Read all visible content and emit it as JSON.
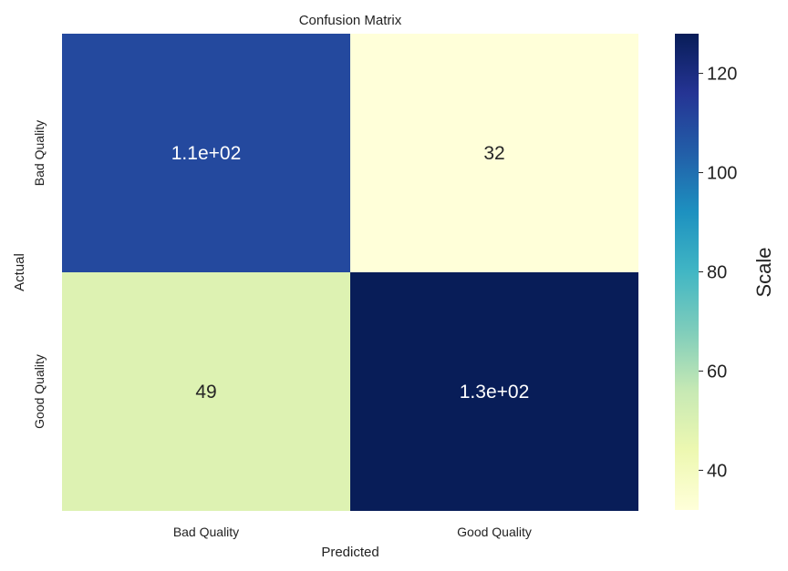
{
  "chart_data": {
    "type": "heatmap",
    "title": "Confusion Matrix",
    "xlabel": "Predicted",
    "ylabel": "Actual",
    "x_categories": [
      "Bad Quality",
      "Good Quality"
    ],
    "y_categories": [
      "Bad Quality",
      "Good Quality"
    ],
    "values": [
      [
        110,
        32
      ],
      [
        49,
        128
      ]
    ],
    "annotations": [
      [
        "1.1e+02",
        "32"
      ],
      [
        "49",
        "1.3e+02"
      ]
    ],
    "colorbar": {
      "label": "Scale",
      "min": 32,
      "max": 128,
      "ticks": [
        40,
        60,
        80,
        100,
        120
      ],
      "colormap": "YlGnBu",
      "colormap_stops": [
        "#ffffd9",
        "#edf8b1",
        "#c7e9b4",
        "#7fcdbb",
        "#41b6c4",
        "#1d91c0",
        "#225ea8",
        "#253494",
        "#081d58"
      ]
    },
    "grid": false
  }
}
